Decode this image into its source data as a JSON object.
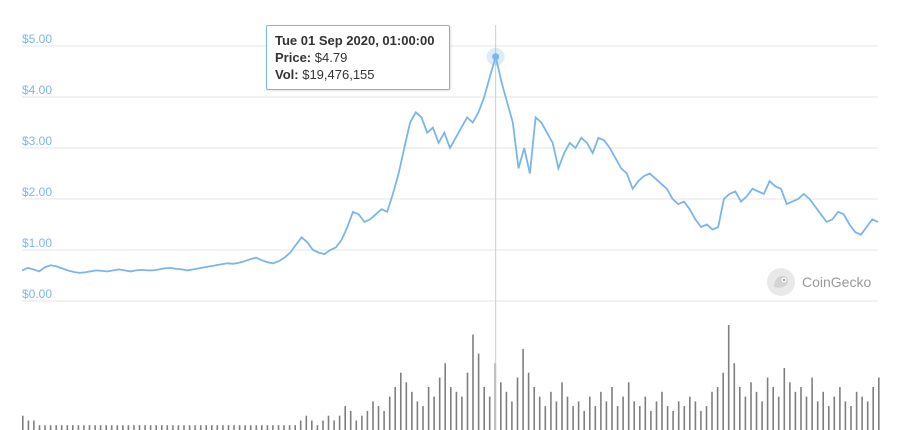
{
  "chart_data": {
    "type": "line",
    "y_ticks": [
      "$0.00",
      "$1.00",
      "$2.00",
      "$3.00",
      "$4.00",
      "$5.00"
    ],
    "ylim": [
      0,
      5
    ],
    "grid": true,
    "price_series": {
      "color": "#7cb5ec",
      "values": [
        0.6,
        0.65,
        0.62,
        0.58,
        0.66,
        0.7,
        0.68,
        0.64,
        0.6,
        0.57,
        0.55,
        0.56,
        0.58,
        0.6,
        0.59,
        0.58,
        0.6,
        0.62,
        0.6,
        0.58,
        0.6,
        0.61,
        0.6,
        0.6,
        0.62,
        0.64,
        0.65,
        0.63,
        0.62,
        0.6,
        0.62,
        0.64,
        0.66,
        0.68,
        0.7,
        0.72,
        0.74,
        0.73,
        0.75,
        0.78,
        0.82,
        0.85,
        0.8,
        0.76,
        0.74,
        0.78,
        0.85,
        0.95,
        1.1,
        1.25,
        1.15,
        1.0,
        0.95,
        0.92,
        1.0,
        1.05,
        1.2,
        1.45,
        1.75,
        1.7,
        1.55,
        1.6,
        1.7,
        1.8,
        1.75,
        2.1,
        2.5,
        3.0,
        3.5,
        3.7,
        3.6,
        3.3,
        3.4,
        3.1,
        3.3,
        3.0,
        3.2,
        3.4,
        3.6,
        3.5,
        3.7,
        4.0,
        4.4,
        4.79,
        4.3,
        3.9,
        3.5,
        2.6,
        3.0,
        2.5,
        3.6,
        3.5,
        3.3,
        3.1,
        2.6,
        2.9,
        3.1,
        3.0,
        3.2,
        3.1,
        2.9,
        3.2,
        3.15,
        3.0,
        2.8,
        2.6,
        2.5,
        2.2,
        2.35,
        2.45,
        2.5,
        2.4,
        2.3,
        2.2,
        2.0,
        1.9,
        1.95,
        1.8,
        1.6,
        1.45,
        1.5,
        1.4,
        1.45,
        2.0,
        2.1,
        2.15,
        1.95,
        2.05,
        2.2,
        2.15,
        2.1,
        2.35,
        2.25,
        2.2,
        1.9,
        1.95,
        2.0,
        2.1,
        2.0,
        1.85,
        1.7,
        1.55,
        1.6,
        1.75,
        1.7,
        1.5,
        1.35,
        1.3,
        1.45,
        1.6,
        1.55
      ]
    },
    "volume_series": {
      "color": "#7f7f7f",
      "values": [
        3,
        2,
        2,
        1,
        1,
        1,
        1,
        1,
        1,
        1,
        1,
        1,
        1,
        1,
        1,
        1,
        1,
        1,
        1,
        1,
        1,
        1,
        1,
        1,
        1,
        1,
        1,
        1,
        1,
        1,
        1,
        1,
        1,
        1,
        1,
        1,
        1,
        1,
        1,
        1,
        1,
        1,
        1,
        1,
        1,
        1,
        1,
        1,
        1,
        1,
        2,
        3,
        2,
        1,
        2,
        3,
        2,
        3,
        5,
        4,
        2,
        3,
        4,
        6,
        5,
        4,
        7,
        9,
        12,
        10,
        8,
        6,
        5,
        9,
        7,
        11,
        14,
        9,
        8,
        7,
        12,
        20,
        16,
        9,
        7,
        14,
        10,
        8,
        6,
        11,
        17,
        12,
        9,
        7,
        5,
        8,
        6,
        10,
        7,
        5,
        6,
        4,
        7,
        5,
        8,
        6,
        9,
        5,
        7,
        10,
        6,
        5,
        7,
        4,
        6,
        8,
        5,
        4,
        6,
        5,
        7,
        6,
        4,
        5,
        8,
        9,
        12,
        22,
        14,
        9,
        7,
        10,
        8,
        6,
        11,
        9,
        7,
        13,
        10,
        8,
        9,
        7,
        11,
        6,
        8,
        5,
        7,
        9,
        6,
        5,
        8,
        7,
        6,
        9,
        11
      ]
    },
    "tooltip": {
      "date": "Tue 01 Sep 2020, 01:00:00",
      "price_label": "Price:",
      "price_value": "$4.79",
      "vol_label": "Vol:",
      "vol_value": "$19,476,155"
    },
    "watermark": "CoinGecko"
  }
}
